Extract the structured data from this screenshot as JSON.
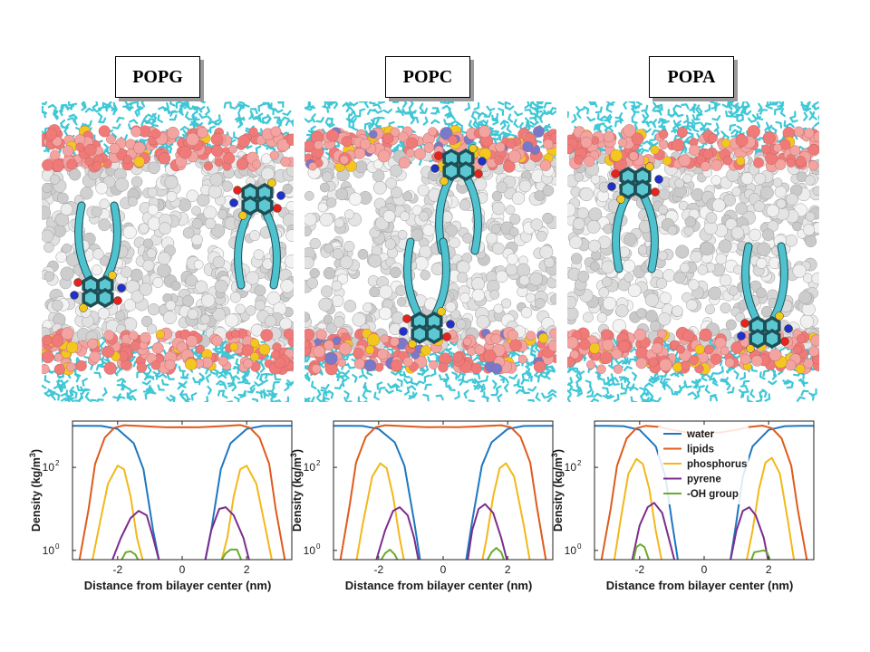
{
  "panels": [
    {
      "label": "POPG",
      "density_plot": "figure.chart_data.0"
    },
    {
      "label": "POPC",
      "density_plot": "figure.chart_data.1"
    },
    {
      "label": "POPA",
      "density_plot": "figure.chart_data.2"
    }
  ],
  "colors": {
    "water": "#1f77bf",
    "lipids": "#e05a1c",
    "phosphorus": "#f2b81a",
    "pyrene": "#7b2d8e",
    "oh_group": "#6aab2e",
    "lipid_bead": "#e6e6e6",
    "headgroup": "#f07a78",
    "water_stick": "#3fc7d6",
    "pyrene_stick": "#4ec3cf"
  },
  "axis_labels": {
    "x": "Distance from bilayer center (nm)",
    "y_main": "Density (kg/m",
    "y_sup": "3",
    "y_close": ")"
  },
  "chart_data": [
    {
      "type": "line",
      "ylog": true,
      "xlim": [
        -3.4,
        3.4
      ],
      "ylim": [
        0.6,
        1300
      ],
      "xticks": [
        -2,
        0,
        2
      ],
      "xticklabels": [
        "-2",
        "0",
        "2"
      ],
      "yticks": [
        1,
        100
      ],
      "yticklabels": [
        {
          "base": "10",
          "exp": "0"
        },
        {
          "base": "10",
          "exp": "2"
        }
      ],
      "series": [
        {
          "key": "water",
          "points": [
            [
              -3.4,
              1000
            ],
            [
              -3.0,
              1000
            ],
            [
              -2.5,
              990
            ],
            [
              -2.0,
              840
            ],
            [
              -1.5,
              380
            ],
            [
              -1.2,
              90
            ],
            [
              -0.9,
              3
            ],
            [
              -0.7,
              0.5
            ],
            [
              0.7,
              0.5
            ],
            [
              0.9,
              3
            ],
            [
              1.2,
              90
            ],
            [
              1.5,
              380
            ],
            [
              2.0,
              840
            ],
            [
              2.5,
              990
            ],
            [
              3.0,
              1000
            ],
            [
              3.4,
              1000
            ]
          ]
        },
        {
          "key": "lipids",
          "points": [
            [
              -3.2,
              0.5
            ],
            [
              -2.9,
              10
            ],
            [
              -2.7,
              120
            ],
            [
              -2.4,
              520
            ],
            [
              -2.1,
              900
            ],
            [
              -1.8,
              1030
            ],
            [
              -1.4,
              1000
            ],
            [
              -1.0,
              960
            ],
            [
              -0.5,
              920
            ],
            [
              0,
              930
            ],
            [
              0.5,
              920
            ],
            [
              1.0,
              960
            ],
            [
              1.4,
              1000
            ],
            [
              1.8,
              1040
            ],
            [
              2.1,
              900
            ],
            [
              2.4,
              520
            ],
            [
              2.7,
              120
            ],
            [
              2.9,
              10
            ],
            [
              3.2,
              0.5
            ]
          ]
        },
        {
          "key": "phosphorus",
          "points": [
            [
              -2.8,
              0.5
            ],
            [
              -2.6,
              3
            ],
            [
              -2.3,
              40
            ],
            [
              -2.0,
              110
            ],
            [
              -1.8,
              90
            ],
            [
              -1.6,
              20
            ],
            [
              -1.4,
              2
            ],
            [
              -1.2,
              0.5
            ],
            [
              1.2,
              0.5
            ],
            [
              1.4,
              2
            ],
            [
              1.6,
              20
            ],
            [
              1.8,
              90
            ],
            [
              2.0,
              110
            ],
            [
              2.3,
              40
            ],
            [
              2.6,
              3
            ],
            [
              2.8,
              0.5
            ]
          ]
        },
        {
          "key": "pyrene",
          "points": [
            [
              -2.2,
              0.5
            ],
            [
              -1.9,
              2
            ],
            [
              -1.6,
              6
            ],
            [
              -1.35,
              9
            ],
            [
              -1.1,
              7
            ],
            [
              -0.9,
              2
            ],
            [
              -0.7,
              0.5
            ],
            [
              0.7,
              0.5
            ],
            [
              0.9,
              3
            ],
            [
              1.15,
              10
            ],
            [
              1.35,
              11
            ],
            [
              1.6,
              7
            ],
            [
              1.9,
              2
            ],
            [
              2.1,
              0.5
            ]
          ]
        },
        {
          "key": "oh_group",
          "points": [
            [
              -1.9,
              0.55
            ],
            [
              -1.75,
              0.9
            ],
            [
              -1.6,
              0.95
            ],
            [
              -1.45,
              0.8
            ],
            [
              -1.35,
              0.55
            ],
            [
              1.2,
              0.55
            ],
            [
              1.35,
              0.85
            ],
            [
              1.5,
              1.05
            ],
            [
              1.7,
              1.05
            ],
            [
              1.85,
              0.55
            ]
          ]
        }
      ]
    },
    {
      "type": "line",
      "ylog": true,
      "xlim": [
        -3.4,
        3.4
      ],
      "ylim": [
        0.6,
        1300
      ],
      "xticks": [
        -2,
        0,
        2
      ],
      "xticklabels": [
        "-2",
        "0",
        "2"
      ],
      "yticks": [
        1,
        100
      ],
      "yticklabels": [
        {
          "base": "10",
          "exp": "0"
        },
        {
          "base": "10",
          "exp": "2"
        }
      ],
      "series": [
        {
          "key": "water",
          "points": [
            [
              -3.4,
              1000
            ],
            [
              -3.0,
              1000
            ],
            [
              -2.5,
              990
            ],
            [
              -2.0,
              840
            ],
            [
              -1.5,
              400
            ],
            [
              -1.2,
              110
            ],
            [
              -0.9,
              5
            ],
            [
              -0.7,
              0.5
            ],
            [
              0.7,
              0.5
            ],
            [
              0.9,
              5
            ],
            [
              1.2,
              110
            ],
            [
              1.5,
              400
            ],
            [
              2.0,
              840
            ],
            [
              2.5,
              990
            ],
            [
              3.0,
              1000
            ],
            [
              3.4,
              1000
            ]
          ]
        },
        {
          "key": "lipids",
          "points": [
            [
              -3.2,
              0.5
            ],
            [
              -2.9,
              12
            ],
            [
              -2.7,
              130
            ],
            [
              -2.4,
              540
            ],
            [
              -2.1,
              920
            ],
            [
              -1.8,
              1030
            ],
            [
              -1.4,
              1000
            ],
            [
              -1.0,
              960
            ],
            [
              -0.5,
              930
            ],
            [
              0,
              935
            ],
            [
              0.5,
              930
            ],
            [
              1.0,
              960
            ],
            [
              1.4,
              1000
            ],
            [
              1.8,
              1030
            ],
            [
              2.1,
              920
            ],
            [
              2.4,
              540
            ],
            [
              2.7,
              130
            ],
            [
              2.9,
              12
            ],
            [
              3.2,
              0.5
            ]
          ]
        },
        {
          "key": "phosphorus",
          "points": [
            [
              -2.7,
              0.5
            ],
            [
              -2.5,
              4
            ],
            [
              -2.2,
              60
            ],
            [
              -1.95,
              125
            ],
            [
              -1.75,
              95
            ],
            [
              -1.55,
              20
            ],
            [
              -1.35,
              2
            ],
            [
              -1.2,
              0.5
            ],
            [
              1.2,
              0.5
            ],
            [
              1.35,
              2
            ],
            [
              1.55,
              20
            ],
            [
              1.75,
              95
            ],
            [
              1.95,
              125
            ],
            [
              2.2,
              60
            ],
            [
              2.5,
              4
            ],
            [
              2.7,
              0.5
            ]
          ]
        },
        {
          "key": "pyrene",
          "points": [
            [
              -2.1,
              0.5
            ],
            [
              -1.8,
              3
            ],
            [
              -1.55,
              9
            ],
            [
              -1.35,
              11
            ],
            [
              -1.1,
              7
            ],
            [
              -0.9,
              2
            ],
            [
              -0.75,
              0.5
            ],
            [
              0.75,
              0.5
            ],
            [
              0.9,
              3
            ],
            [
              1.1,
              10
            ],
            [
              1.3,
              13
            ],
            [
              1.55,
              8
            ],
            [
              1.8,
              2
            ],
            [
              2.0,
              0.5
            ]
          ]
        },
        {
          "key": "oh_group",
          "points": [
            [
              -1.95,
              0.55
            ],
            [
              -1.8,
              0.85
            ],
            [
              -1.65,
              1.05
            ],
            [
              -1.5,
              0.8
            ],
            [
              -1.4,
              0.55
            ],
            [
              1.35,
              0.55
            ],
            [
              1.5,
              0.9
            ],
            [
              1.65,
              1.15
            ],
            [
              1.8,
              0.9
            ],
            [
              1.9,
              0.55
            ]
          ]
        }
      ]
    },
    {
      "type": "line",
      "ylog": true,
      "xlim": [
        -3.4,
        3.4
      ],
      "ylim": [
        0.6,
        1300
      ],
      "xticks": [
        -2,
        0,
        2
      ],
      "xticklabels": [
        "-2",
        "0",
        "2"
      ],
      "yticks": [
        1,
        100
      ],
      "yticklabels": [
        {
          "base": "10",
          "exp": "0"
        },
        {
          "base": "10",
          "exp": "2"
        }
      ],
      "legend": {
        "position": "top-center",
        "entries": [
          "water",
          "lipids",
          "phosphorus",
          "pyrene",
          "-OH group"
        ]
      },
      "series": [
        {
          "key": "water",
          "name": "water",
          "points": [
            [
              -3.4,
              1000
            ],
            [
              -3.0,
              1000
            ],
            [
              -2.5,
              980
            ],
            [
              -2.0,
              800
            ],
            [
              -1.5,
              320
            ],
            [
              -1.2,
              60
            ],
            [
              -1.0,
              5
            ],
            [
              -0.8,
              0.5
            ],
            [
              0.8,
              0.5
            ],
            [
              1.0,
              5
            ],
            [
              1.2,
              60
            ],
            [
              1.5,
              320
            ],
            [
              2.0,
              800
            ],
            [
              2.5,
              980
            ],
            [
              3.0,
              1000
            ],
            [
              3.4,
              1000
            ]
          ]
        },
        {
          "key": "lipids",
          "name": "lipids",
          "points": [
            [
              -3.2,
              0.5
            ],
            [
              -2.9,
              10
            ],
            [
              -2.7,
              110
            ],
            [
              -2.4,
              500
            ],
            [
              -2.1,
              880
            ],
            [
              -1.8,
              1000
            ],
            [
              -1.4,
              940
            ],
            [
              -1.0,
              800
            ],
            [
              -0.5,
              690
            ],
            [
              0,
              680
            ],
            [
              0.5,
              690
            ],
            [
              1.0,
              800
            ],
            [
              1.4,
              940
            ],
            [
              1.8,
              1010
            ],
            [
              2.1,
              880
            ],
            [
              2.4,
              500
            ],
            [
              2.7,
              110
            ],
            [
              2.9,
              10
            ],
            [
              3.2,
              0.5
            ]
          ]
        },
        {
          "key": "phosphorus",
          "name": "phosphorus",
          "points": [
            [
              -2.8,
              0.5
            ],
            [
              -2.6,
              5
            ],
            [
              -2.35,
              70
            ],
            [
              -2.1,
              160
            ],
            [
              -1.9,
              120
            ],
            [
              -1.7,
              30
            ],
            [
              -1.5,
              3
            ],
            [
              -1.3,
              0.5
            ],
            [
              1.3,
              0.5
            ],
            [
              1.5,
              3
            ],
            [
              1.7,
              30
            ],
            [
              1.9,
              130
            ],
            [
              2.1,
              170
            ],
            [
              2.35,
              70
            ],
            [
              2.6,
              5
            ],
            [
              2.8,
              0.5
            ]
          ]
        },
        {
          "key": "pyrene",
          "name": "pyrene",
          "points": [
            [
              -2.25,
              0.5
            ],
            [
              -2.0,
              4
            ],
            [
              -1.75,
              11
            ],
            [
              -1.55,
              14
            ],
            [
              -1.3,
              8
            ],
            [
              -1.1,
              2
            ],
            [
              -0.9,
              0.5
            ],
            [
              0.8,
              0.5
            ],
            [
              1.0,
              3
            ],
            [
              1.2,
              9
            ],
            [
              1.4,
              11
            ],
            [
              1.6,
              7
            ],
            [
              1.85,
              2
            ],
            [
              2.0,
              0.5
            ]
          ]
        },
        {
          "key": "oh_group",
          "name": "-OH group",
          "points": [
            [
              -2.2,
              0.55
            ],
            [
              -2.1,
              1.2
            ],
            [
              -1.98,
              1.4
            ],
            [
              -1.85,
              1.2
            ],
            [
              -1.7,
              0.55
            ],
            [
              1.45,
              0.55
            ],
            [
              1.55,
              0.9
            ],
            [
              1.7,
              0.95
            ],
            [
              1.85,
              1.0
            ],
            [
              1.95,
              0.9
            ],
            [
              2.05,
              0.55
            ]
          ]
        }
      ]
    }
  ]
}
